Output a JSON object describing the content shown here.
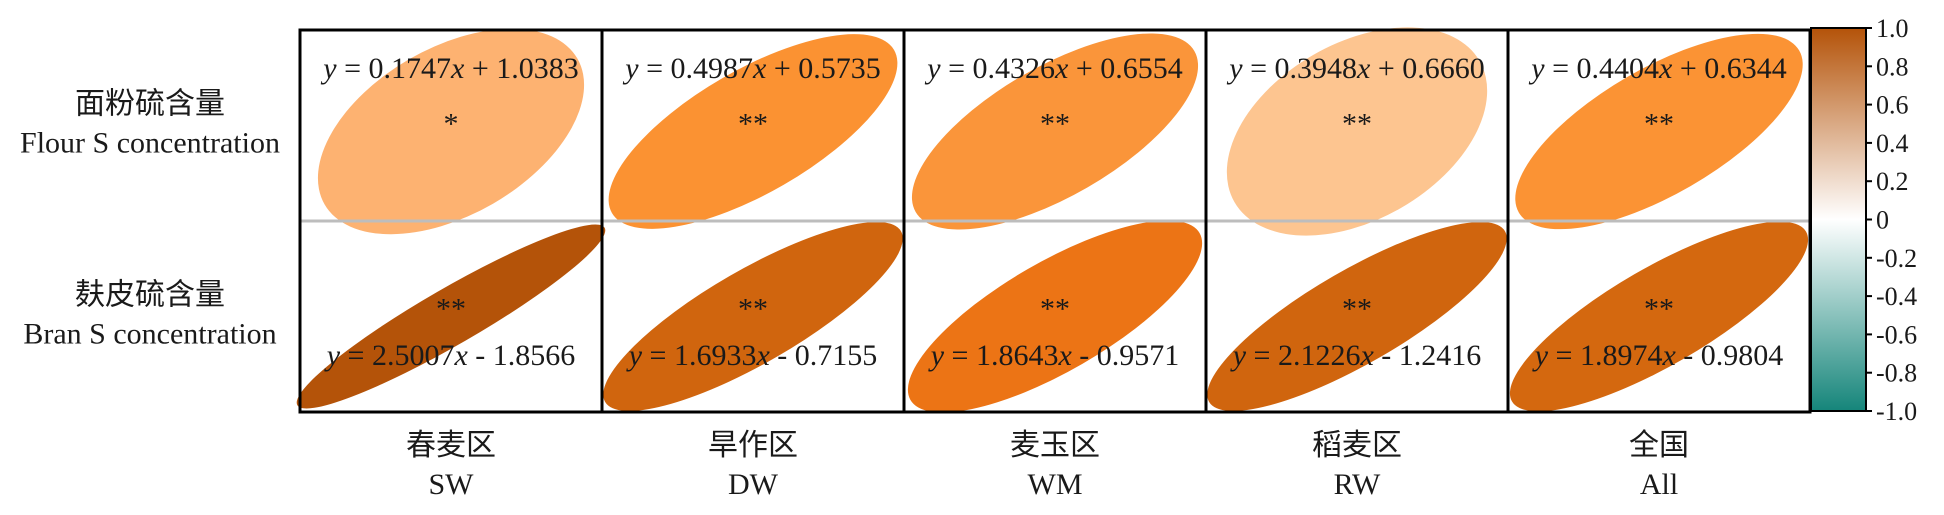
{
  "chart_data": {
    "type": "heatmap",
    "rows": [
      {
        "label_zh": "面粉硫含量",
        "label_en": "Flour S concentration"
      },
      {
        "label_zh": "麸皮硫含量",
        "label_en": "Bran S concentration"
      }
    ],
    "columns": [
      {
        "label_zh": "春麦区",
        "label_en": "SW"
      },
      {
        "label_zh": "旱作区",
        "label_en": "DW"
      },
      {
        "label_zh": "麦玉区",
        "label_en": "WM"
      },
      {
        "label_zh": "稻麦区",
        "label_en": "RW"
      },
      {
        "label_zh": "全国",
        "label_en": "All"
      }
    ],
    "cells": [
      [
        {
          "r": 0.3,
          "color": "#FDB271",
          "sig": "*",
          "eq": {
            "slope": "0.1747",
            "op": "+",
            "intercept": "1.0383"
          }
        },
        {
          "r": 0.62,
          "color": "#FB9232",
          "sig": "**",
          "eq": {
            "slope": "0.4987",
            "op": "+",
            "intercept": "0.5735"
          }
        },
        {
          "r": 0.58,
          "color": "#FA953A",
          "sig": "**",
          "eq": {
            "slope": "0.4326",
            "op": "+",
            "intercept": "0.6554"
          }
        },
        {
          "r": 0.22,
          "color": "#FDC590",
          "sig": "**",
          "eq": {
            "slope": "0.3948",
            "op": "+",
            "intercept": "0.6660"
          }
        },
        {
          "r": 0.6,
          "color": "#FB9334",
          "sig": "**",
          "eq": {
            "slope": "0.4404",
            "op": "+",
            "intercept": "0.6344"
          }
        }
      ],
      [
        {
          "r": 0.92,
          "color": "#B45309",
          "sig": "**",
          "eq": {
            "slope": "2.5007",
            "op": "-",
            "intercept": "1.8566"
          }
        },
        {
          "r": 0.78,
          "color": "#D0650E",
          "sig": "**",
          "eq": {
            "slope": "1.6933",
            "op": "-",
            "intercept": "0.7155"
          }
        },
        {
          "r": 0.7,
          "color": "#EC7415",
          "sig": "**",
          "eq": {
            "slope": "1.8643",
            "op": "-",
            "intercept": "0.9571"
          }
        },
        {
          "r": 0.78,
          "color": "#D0650E",
          "sig": "**",
          "eq": {
            "slope": "2.1226",
            "op": "-",
            "intercept": "1.2416"
          }
        },
        {
          "r": 0.76,
          "color": "#D4680F",
          "sig": "**",
          "eq": {
            "slope": "1.8974",
            "op": "-",
            "intercept": "0.9804"
          }
        }
      ]
    ],
    "colorbar": {
      "range": [
        -1.0,
        1.0
      ],
      "ticks": [
        "1.0",
        "0.8",
        "0.6",
        "0.4",
        "0.2",
        "0",
        "-0.2",
        "-0.4",
        "-0.6",
        "-0.8",
        "-1.0"
      ],
      "colors": {
        "high": "#B45309",
        "mid": "#FFFFFF",
        "low": "#15857A"
      }
    }
  }
}
